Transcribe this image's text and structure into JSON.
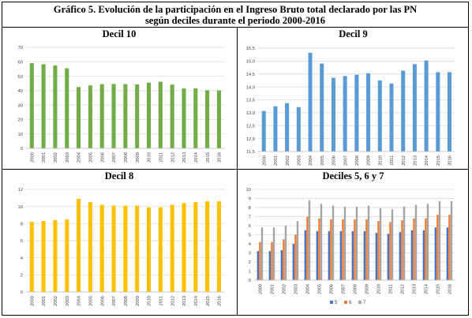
{
  "header": {
    "title_line1": "Gráfico 5. Evolución de la participación en el Ingreso Bruto total declarado por las PN",
    "title_line2": "según deciles durante el periodo 2000-2016"
  },
  "colors": {
    "green": "#70ad47",
    "blue": "#5b9bd5",
    "yellow": "#ffc000",
    "s5": "#4472c4",
    "s6": "#ed7d31",
    "s7": "#a5a5a5",
    "grid": "#d9d9d9"
  },
  "chart_data": [
    {
      "id": "decil10",
      "type": "bar",
      "title": "Decil 10",
      "categories": [
        "2000",
        "2001",
        "2002",
        "2003",
        "2004",
        "2005",
        "2006",
        "2007",
        "2008",
        "2009",
        "2010",
        "2011",
        "2012",
        "2013",
        "2014",
        "2015",
        "2016"
      ],
      "series": [
        {
          "values": [
            59.0,
            58.3,
            57.5,
            55.5,
            42.5,
            43.6,
            44.5,
            44.6,
            44.5,
            44.3,
            45.5,
            46.2,
            44.2,
            41.5,
            41.6,
            40.3,
            40.2
          ],
          "color": "#70ad47"
        }
      ],
      "ylim": [
        0,
        70
      ],
      "yticks": [
        "0",
        "10",
        "20",
        "30",
        "40",
        "50",
        "60",
        "70"
      ],
      "grid": true
    },
    {
      "id": "decil9",
      "type": "bar",
      "title": "Decil 9",
      "categories": [
        "2000",
        "2001",
        "2002",
        "2003",
        "2004",
        "2005",
        "2006",
        "2007",
        "2008",
        "2009",
        "2010",
        "2011",
        "2012",
        "2013",
        "2014",
        "2015",
        "2016"
      ],
      "series": [
        {
          "values": [
            13.07,
            13.25,
            13.37,
            13.22,
            15.32,
            14.9,
            14.35,
            14.42,
            14.47,
            14.53,
            14.25,
            14.13,
            14.63,
            14.88,
            15.02,
            14.57,
            14.57
          ],
          "color": "#5b9bd5"
        }
      ],
      "ylim": [
        11.5,
        15.5
      ],
      "yticks": [
        "11,5",
        "12,0",
        "12,5",
        "13,0",
        "13,5",
        "14,0",
        "14,5",
        "15,0",
        "15,5"
      ],
      "grid": true
    },
    {
      "id": "decil8",
      "type": "bar",
      "title": "Decil 8",
      "categories": [
        "2000",
        "2001",
        "2002",
        "2003",
        "2004",
        "2005",
        "2006",
        "2007",
        "2008",
        "2009",
        "2010",
        "2011",
        "2012",
        "2013",
        "2014",
        "2015",
        "2016"
      ],
      "series": [
        {
          "values": [
            8.2,
            8.3,
            8.4,
            8.5,
            10.9,
            10.5,
            10.2,
            10.1,
            10.1,
            10.1,
            9.9,
            9.9,
            10.2,
            10.4,
            10.5,
            10.6,
            10.6
          ],
          "color": "#ffc000"
        }
      ],
      "ylim": [
        0,
        12
      ],
      "yticks": [
        "0",
        "2",
        "4",
        "6",
        "8",
        "10",
        "12"
      ],
      "grid": true
    },
    {
      "id": "deciles567",
      "type": "bar",
      "title": "Deciles 5, 6 y 7",
      "categories": [
        "2000",
        "2001",
        "2002",
        "2003",
        "2004",
        "2005",
        "2006",
        "2007",
        "2008",
        "2009",
        "2010",
        "2011",
        "2012",
        "2013",
        "2014",
        "2015",
        "2016"
      ],
      "series": [
        {
          "name": "5",
          "values": [
            3.2,
            3.2,
            3.3,
            4.0,
            5.5,
            5.4,
            5.4,
            5.4,
            5.4,
            5.4,
            5.2,
            5.1,
            5.3,
            5.5,
            5.5,
            5.8,
            5.8
          ],
          "color": "#4472c4"
        },
        {
          "name": "6",
          "values": [
            4.2,
            4.2,
            4.5,
            5.0,
            7.0,
            6.8,
            6.7,
            6.7,
            6.7,
            6.7,
            6.5,
            6.4,
            6.6,
            6.8,
            6.8,
            7.2,
            7.2
          ],
          "color": "#ed7d31"
        },
        {
          "name": "7",
          "values": [
            5.8,
            5.8,
            6.0,
            6.5,
            8.8,
            8.4,
            8.2,
            8.1,
            8.1,
            8.2,
            7.9,
            7.8,
            8.1,
            8.3,
            8.4,
            8.7,
            8.7
          ],
          "color": "#a5a5a5"
        }
      ],
      "ylim": [
        0,
        10
      ],
      "yticks": [
        "0",
        "1",
        "2",
        "3",
        "4",
        "5",
        "6",
        "7",
        "8",
        "9",
        "10"
      ],
      "legend": "bottom",
      "grid": true
    }
  ]
}
